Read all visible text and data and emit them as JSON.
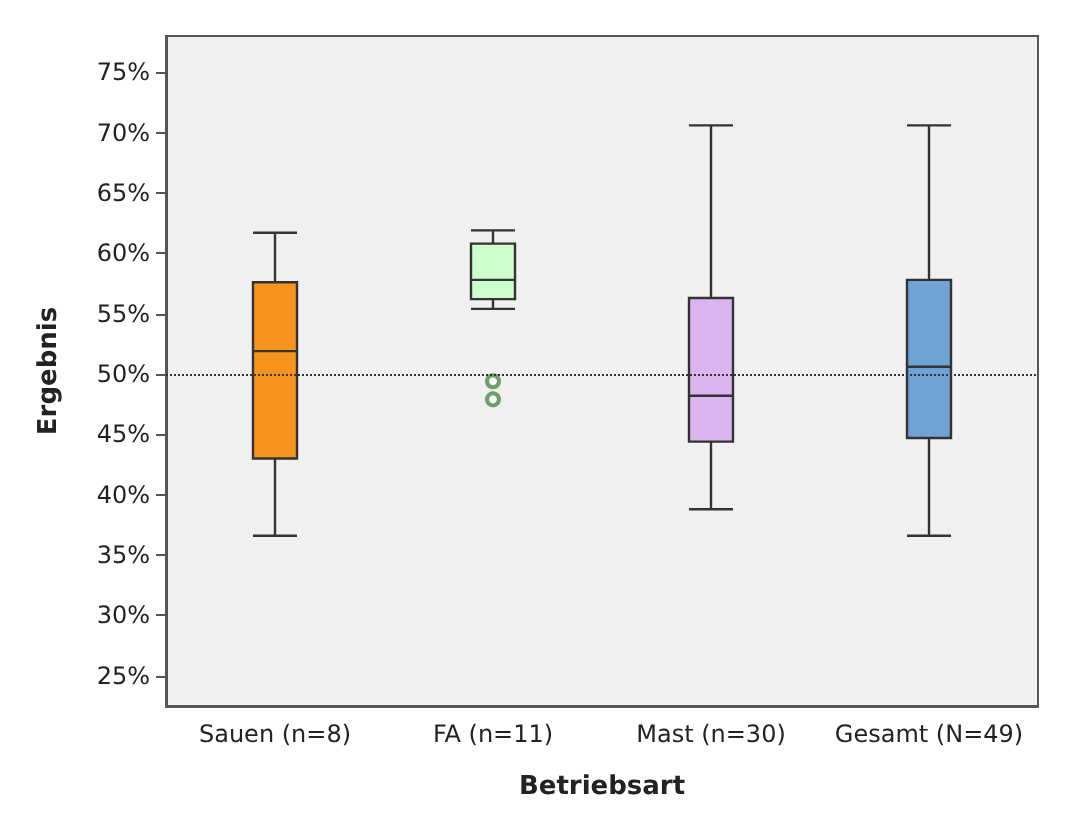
{
  "chart_data": {
    "type": "box",
    "xlabel": "Betriebsart",
    "ylabel": "Ergebnis",
    "categories": [
      "Sauen (n=8)",
      "FA (n=11)",
      "Mast (n=30)",
      "Gesamt (N=49)"
    ],
    "colors": [
      "#f7941d",
      "#ccffcc",
      "#dcb4f0",
      "#6fa3d6"
    ],
    "boxes": [
      {
        "low": 36.6,
        "q1": 43.0,
        "median": 51.9,
        "q3": 57.6,
        "high": 61.7
      },
      {
        "low": 55.4,
        "q1": 56.2,
        "median": 57.8,
        "q3": 60.8,
        "high": 61.9,
        "outliers": [
          49.4,
          47.9
        ]
      },
      {
        "low": 38.8,
        "q1": 44.4,
        "median": 48.2,
        "q3": 56.3,
        "high": 70.6
      },
      {
        "low": 36.6,
        "q1": 44.7,
        "median": 50.6,
        "q3": 57.8,
        "high": 70.6
      }
    ],
    "ylim": [
      22.5,
      78
    ],
    "yticks": [
      {
        "value": 25,
        "label": "25%"
      },
      {
        "value": 30,
        "label": "30%"
      },
      {
        "value": 35,
        "label": "35%"
      },
      {
        "value": 40,
        "label": "40%"
      },
      {
        "value": 45,
        "label": "45%"
      },
      {
        "value": 50,
        "label": "50%"
      },
      {
        "value": 55,
        "label": "55%"
      },
      {
        "value": 60,
        "label": "60%"
      },
      {
        "value": 65,
        "label": "65%"
      },
      {
        "value": 70,
        "label": "70%"
      },
      {
        "value": 75,
        "label": "75%"
      }
    ],
    "grid": false,
    "ref_lines": [
      {
        "axis": "y",
        "value": 50,
        "line_style": "dotted",
        "color": "#333333"
      }
    ]
  }
}
